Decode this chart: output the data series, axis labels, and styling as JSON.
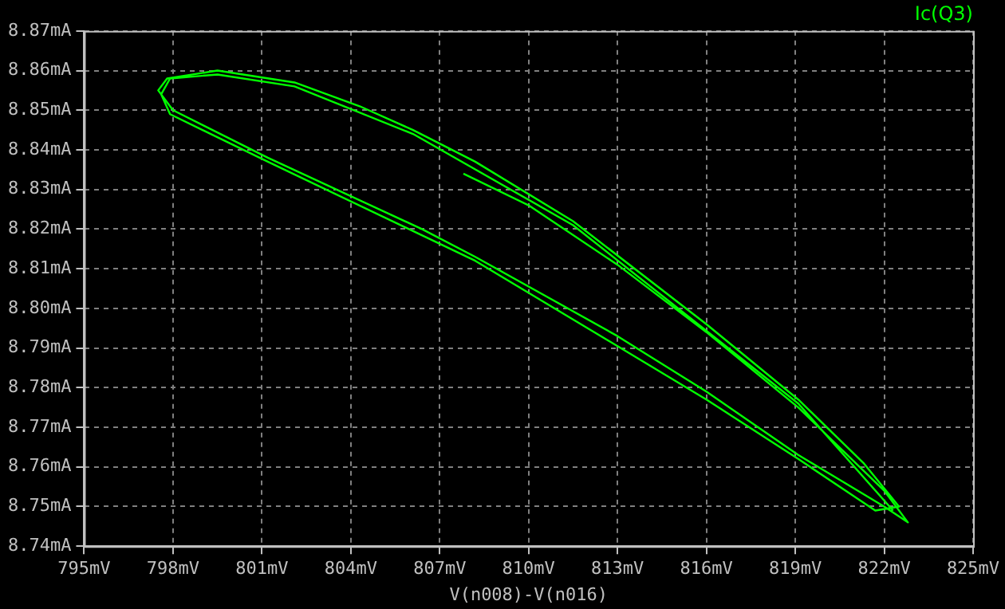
{
  "chart_data": {
    "type": "line",
    "title": "Ic(Q3)",
    "xlabel": "V(n008)-V(n016)",
    "x": [
      807.8,
      810.0,
      813.0,
      816.0,
      819.1,
      822.0,
      822.8,
      822.0,
      819.1,
      816.0,
      813.0,
      808.2,
      806.4,
      801.2,
      798.0,
      797.5,
      797.8,
      799.5,
      802.1,
      804.3,
      806.1,
      808.2,
      811.5,
      816.0,
      819.1,
      821.3,
      822.5,
      821.7,
      819.1,
      816.0,
      808.2,
      801.2,
      797.9,
      797.6,
      797.9,
      799.5,
      802.1,
      806.1,
      811.5,
      819.1,
      822.3
    ],
    "series": [
      {
        "name": null,
        "color": "#00ff00",
        "values": [
          8.834,
          8.826,
          8.811,
          8.794,
          8.775,
          8.754,
          8.746,
          8.75,
          8.763,
          8.779,
          8.793,
          8.813,
          8.82,
          8.838,
          8.85,
          8.855,
          8.858,
          8.86,
          8.857,
          8.851,
          8.845,
          8.837,
          8.822,
          8.796,
          8.777,
          8.761,
          8.75,
          8.749,
          8.762,
          8.777,
          8.812,
          8.837,
          8.849,
          8.854,
          8.858,
          8.859,
          8.856,
          8.844,
          8.821,
          8.776,
          8.749
        ]
      }
    ],
    "xlim": [
      795,
      825
    ],
    "xticks": [
      {
        "value": 795,
        "label": "795mV"
      },
      {
        "value": 798,
        "label": "798mV"
      },
      {
        "value": 801,
        "label": "801mV"
      },
      {
        "value": 804,
        "label": "804mV"
      },
      {
        "value": 807,
        "label": "807mV"
      },
      {
        "value": 810,
        "label": "810mV"
      },
      {
        "value": 813,
        "label": "813mV"
      },
      {
        "value": 816,
        "label": "816mV"
      },
      {
        "value": 819,
        "label": "819mV"
      },
      {
        "value": 822,
        "label": "822mV"
      },
      {
        "value": 825,
        "label": "825mV"
      }
    ],
    "ylim": [
      8.74,
      8.87
    ],
    "yticks": [
      {
        "value": 8.74,
        "label": "8.74mA"
      },
      {
        "value": 8.75,
        "label": "8.75mA"
      },
      {
        "value": 8.76,
        "label": "8.76mA"
      },
      {
        "value": 8.77,
        "label": "8.77mA"
      },
      {
        "value": 8.78,
        "label": "8.78mA"
      },
      {
        "value": 8.79,
        "label": "8.79mA"
      },
      {
        "value": 8.8,
        "label": "8.80mA"
      },
      {
        "value": 8.81,
        "label": "8.81mA"
      },
      {
        "value": 8.82,
        "label": "8.82mA"
      },
      {
        "value": 8.83,
        "label": "8.83mA"
      },
      {
        "value": 8.84,
        "label": "8.84mA"
      },
      {
        "value": 8.85,
        "label": "8.85mA"
      },
      {
        "value": 8.86,
        "label": "8.86mA"
      },
      {
        "value": 8.87,
        "label": "8.87mA"
      }
    ],
    "grid": true,
    "legend": false,
    "marker": "none",
    "line_style": "solid"
  }
}
